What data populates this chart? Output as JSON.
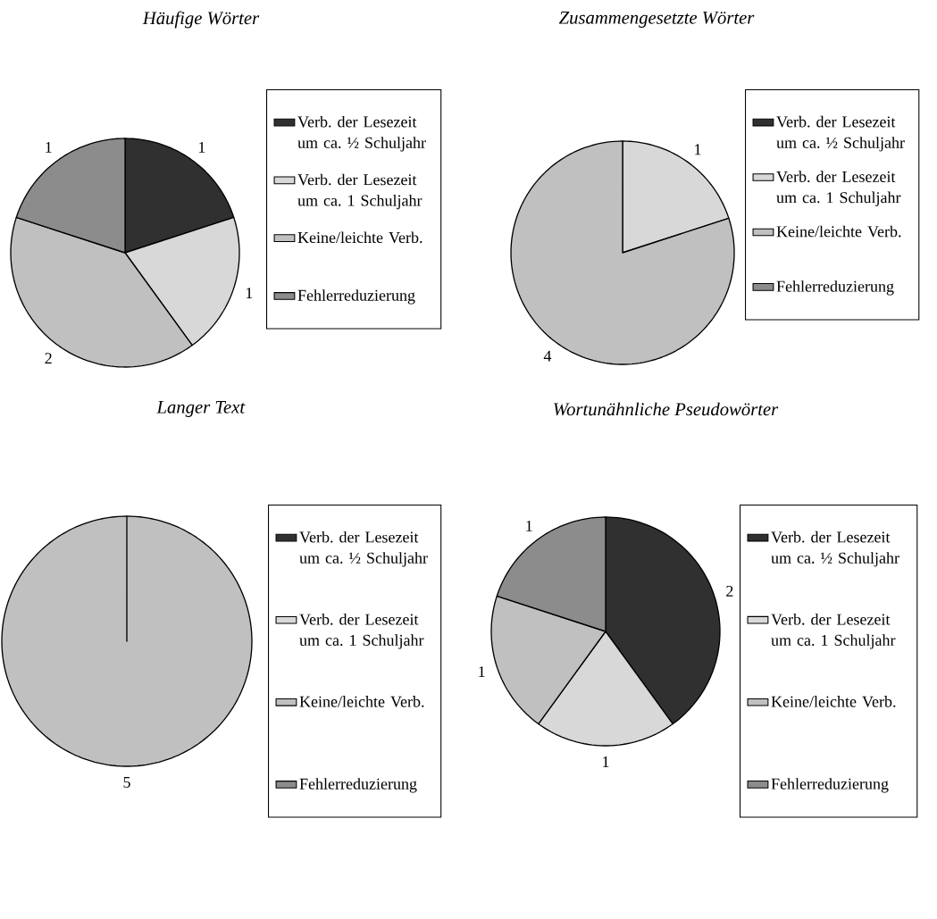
{
  "chart_data": [
    {
      "type": "pie",
      "title": "*Häufige Wörter*",
      "categories": [
        "Verb. der Lesezeit um ca. ½ Schuljahr",
        "Verb. der Lesezeit um ca. 1 Schuljahr",
        "Keine/leichte Verb.",
        "Fehlerreduzierung"
      ],
      "values": [
        1,
        1,
        2,
        1
      ],
      "colors": [
        "#303030",
        "#d8d8d8",
        "#c0c0c0",
        "#8c8c8c"
      ],
      "data_labels": true,
      "legend": "right"
    },
    {
      "type": "pie",
      "title": "*Zusammengesetzte Wörter*",
      "categories": [
        "Verb. der Lesezeit um ca. ½ Schuljahr",
        "Verb. der Lesezeit um ca. 1 Schuljahr",
        "Keine/leichte Verb.",
        "Fehlerreduzierung"
      ],
      "values": [
        0,
        1,
        4,
        0
      ],
      "colors": [
        "#303030",
        "#d8d8d8",
        "#c0c0c0",
        "#8c8c8c"
      ],
      "data_labels": true,
      "legend": "right"
    },
    {
      "type": "pie",
      "title": "*Langer Text*",
      "categories": [
        "Verb. der Lesezeit um ca. ½ Schuljahr",
        "Verb. der Lesezeit um ca. 1 Schuljahr",
        "Keine/leichte Verb.",
        "Fehlerreduzierung"
      ],
      "values": [
        0,
        0,
        5,
        0
      ],
      "colors": [
        "#303030",
        "#d8d8d8",
        "#c0c0c0",
        "#8c8c8c"
      ],
      "data_labels": true,
      "legend": "right"
    },
    {
      "type": "pie",
      "title": "*Wortunähnliche Pseudowörter*",
      "categories": [
        "Verb. der Lesezeit um ca. ½ Schuljahr",
        "Verb. der Lesezeit um ca. 1 Schuljahr",
        "Keine/leichte Verb.",
        "Fehlerreduzierung"
      ],
      "values": [
        2,
        1,
        1,
        1
      ],
      "colors": [
        "#303030",
        "#d8d8d8",
        "#c0c0c0",
        "#8c8c8c"
      ],
      "data_labels": true,
      "legend": "right"
    }
  ]
}
